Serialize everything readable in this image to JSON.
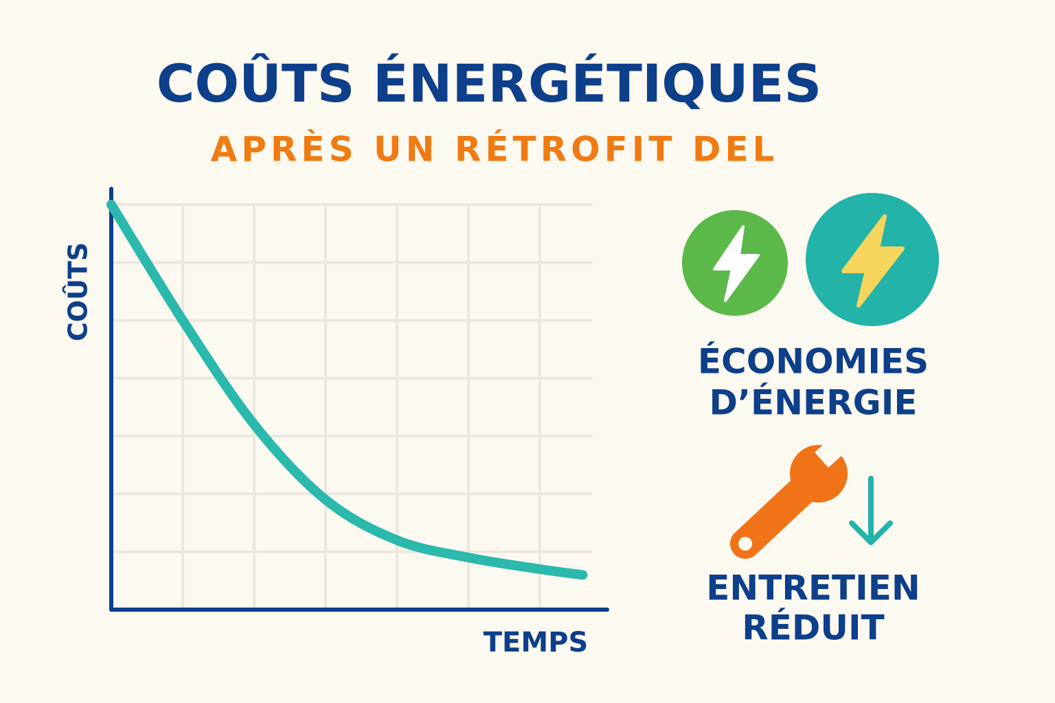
{
  "chart_data": {
    "type": "line",
    "title": "COÛTS ÉNERGÉTIQUES",
    "subtitle": "APRÈS UN RÉTROFIT DEL",
    "ylabel": "COÛTS",
    "xlabel": "TEMPS",
    "x": [
      0,
      1,
      2,
      3,
      4,
      5,
      6,
      6.6
    ],
    "series": [
      {
        "color": "#2bb8ad",
        "values": [
          7,
          5,
          3.2,
          1.9,
          1.2,
          0.9,
          0.7,
          0.6
        ]
      }
    ],
    "xlim": [
      0,
      7
    ],
    "ylim": [
      0,
      7
    ],
    "xgrid": [
      1,
      2,
      3,
      4,
      5,
      6
    ],
    "ygrid": [
      1,
      2,
      3,
      4,
      5,
      6,
      7
    ],
    "grid": true,
    "annotations": [
      {
        "lines": [
          "ÉCONOMIES",
          "D’ÉNERGIE"
        ]
      },
      {
        "lines": [
          "ENTRETIEN",
          "RÉDUIT"
        ]
      }
    ]
  }
}
